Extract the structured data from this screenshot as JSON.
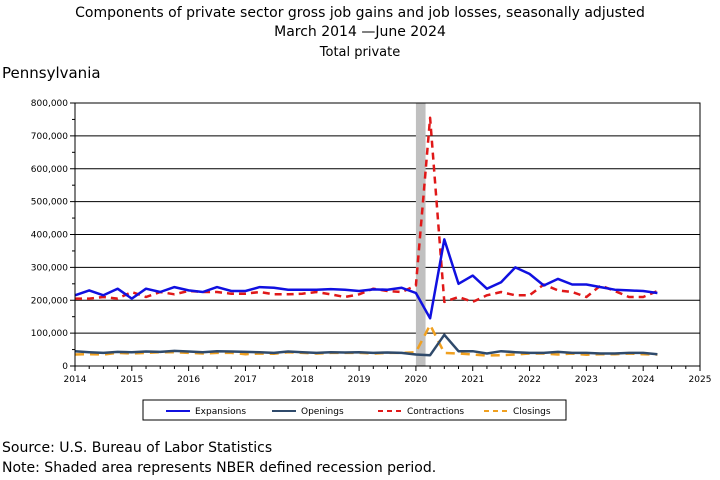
{
  "titles": {
    "line1": "Components of private sector gross job gains and job losses, seasonally adjusted",
    "line2": "March 2014 —June 2024",
    "line3": "Total private"
  },
  "state_label": "Pennsylvania",
  "footer": {
    "source": "Source: U.S. Bureau of Labor Statistics",
    "note": "Note: Shaded area represents NBER defined recession period."
  },
  "chart_data": {
    "type": "line",
    "xlim": [
      2014,
      2025
    ],
    "ylim": [
      0,
      800000
    ],
    "x_ticks": [
      2014,
      2015,
      2016,
      2017,
      2018,
      2019,
      2020,
      2021,
      2022,
      2023,
      2024,
      2025
    ],
    "y_ticks": [
      0,
      100000,
      200000,
      300000,
      400000,
      500000,
      600000,
      700000,
      800000
    ],
    "y_tick_labels": [
      "0",
      "100,000",
      "200,000",
      "300,000",
      "400,000",
      "500,000",
      "600,000",
      "700,000",
      "800,000"
    ],
    "grid": true,
    "legend_position": "bottom",
    "recession": [
      2020.0,
      2020.17
    ],
    "colors": {
      "expansions": "#1010e0",
      "openings": "#2f4a6b",
      "contractions": "#e01818",
      "closings": "#f0a020",
      "recession": "#c0c0c0"
    },
    "x": [
      2014.0,
      2014.25,
      2014.5,
      2014.75,
      2015.0,
      2015.25,
      2015.5,
      2015.75,
      2016.0,
      2016.25,
      2016.5,
      2016.75,
      2017.0,
      2017.25,
      2017.5,
      2017.75,
      2018.0,
      2018.25,
      2018.5,
      2018.75,
      2019.0,
      2019.25,
      2019.5,
      2019.75,
      2020.0,
      2020.25,
      2020.5,
      2020.75,
      2021.0,
      2021.25,
      2021.5,
      2021.75,
      2022.0,
      2022.25,
      2022.5,
      2022.75,
      2023.0,
      2023.25,
      2023.5,
      2023.75,
      2024.0,
      2024.25
    ],
    "series": [
      {
        "name": "Expansions",
        "values": [
          215000,
          230000,
          215000,
          235000,
          205000,
          235000,
          225000,
          240000,
          230000,
          225000,
          240000,
          228000,
          228000,
          240000,
          238000,
          232000,
          232000,
          232000,
          234000,
          232000,
          228000,
          233000,
          232000,
          238000,
          222000,
          145000,
          385000,
          250000,
          275000,
          235000,
          255000,
          300000,
          280000,
          245000,
          265000,
          248000,
          248000,
          240000,
          232000,
          230000,
          228000,
          222000
        ]
      },
      {
        "name": "Openings",
        "values": [
          45000,
          42000,
          40000,
          43000,
          42000,
          44000,
          43000,
          46000,
          44000,
          42000,
          45000,
          44000,
          43000,
          42000,
          40000,
          44000,
          42000,
          40000,
          42000,
          41000,
          42000,
          40000,
          41000,
          40000,
          35000,
          33000,
          95000,
          45000,
          45000,
          38000,
          45000,
          42000,
          40000,
          40000,
          43000,
          40000,
          40000,
          38000,
          38000,
          40000,
          40000,
          36000
        ]
      },
      {
        "name": "Contractions",
        "values": [
          205000,
          205000,
          210000,
          205000,
          225000,
          210000,
          225000,
          218000,
          228000,
          225000,
          225000,
          220000,
          220000,
          225000,
          218000,
          218000,
          220000,
          225000,
          218000,
          210000,
          218000,
          235000,
          228000,
          225000,
          245000,
          755000,
          195000,
          210000,
          195000,
          215000,
          225000,
          215000,
          215000,
          248000,
          230000,
          225000,
          210000,
          245000,
          228000,
          210000,
          210000,
          228000
        ]
      },
      {
        "name": "Closings",
        "values": [
          35000,
          36000,
          35000,
          40000,
          38000,
          40000,
          42000,
          42000,
          40000,
          38000,
          40000,
          40000,
          36000,
          38000,
          37000,
          42000,
          40000,
          38000,
          40000,
          40000,
          40000,
          38000,
          40000,
          40000,
          42000,
          125000,
          40000,
          38000,
          35000,
          32000,
          33000,
          35000,
          38000,
          38000,
          35000,
          38000,
          34000,
          36000,
          36000,
          38000,
          36000,
          35000
        ]
      }
    ]
  }
}
